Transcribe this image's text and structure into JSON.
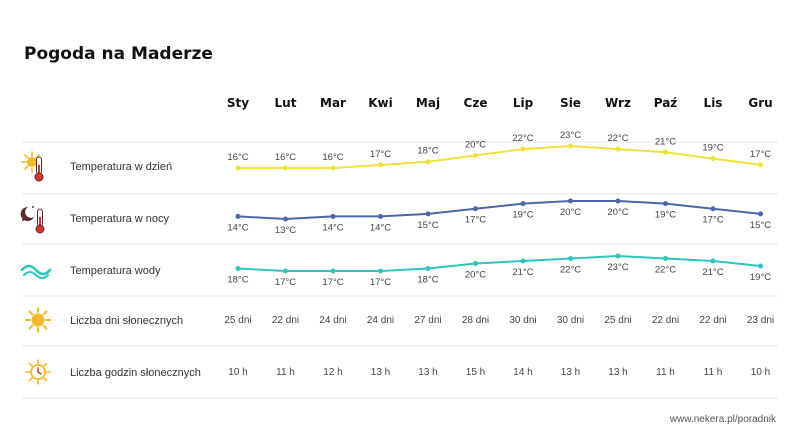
{
  "title": "Pogoda na Maderze",
  "source": "www.nekera.pl/poradnik",
  "colors": {
    "day": "#f0e23a",
    "night": "#4a67a8",
    "water": "#2ec5bd",
    "divider": "#e6e6e6",
    "sun": "#f5b92a",
    "thermo_red": "#d9322e"
  },
  "chart_data": {
    "type": "line",
    "categories": [
      "Sty",
      "Lut",
      "Mar",
      "Kwi",
      "Maj",
      "Cze",
      "Lip",
      "Sie",
      "Wrz",
      "Paź",
      "Lis",
      "Gru"
    ],
    "series": [
      {
        "name": "Temperatura w dzień",
        "icon": "sun-thermometer-icon",
        "values": [
          16,
          16,
          16,
          17,
          18,
          20,
          22,
          23,
          22,
          21,
          19,
          17
        ],
        "labels": [
          "16°C",
          "16°C",
          "16°C",
          "17°C",
          "18°C",
          "20°C",
          "22°C",
          "23°C",
          "22°C",
          "21°C",
          "19°C",
          "17°C"
        ]
      },
      {
        "name": "Temperatura w nocy",
        "icon": "moon-thermometer-icon",
        "values": [
          14,
          13,
          14,
          14,
          15,
          17,
          19,
          20,
          20,
          19,
          17,
          15
        ],
        "labels": [
          "14°C",
          "13°C",
          "14°C",
          "14°C",
          "15°C",
          "17°C",
          "19°C",
          "20°C",
          "20°C",
          "19°C",
          "17°C",
          "15°C"
        ]
      },
      {
        "name": "Temperatura wody",
        "icon": "wave-icon",
        "values": [
          18,
          17,
          17,
          17,
          18,
          20,
          21,
          22,
          23,
          22,
          21,
          19
        ],
        "labels": [
          "18°C",
          "17°C",
          "17°C",
          "17°C",
          "18°C",
          "20°C",
          "21°C",
          "22°C",
          "23°C",
          "22°C",
          "21°C",
          "19°C"
        ]
      }
    ],
    "rows": [
      {
        "name": "Liczba dni słonecznych",
        "icon": "sun-icon",
        "values": [
          "25 dni",
          "22 dni",
          "24 dni",
          "24 dni",
          "27 dni",
          "28 dni",
          "30 dni",
          "30 dni",
          "25 dni",
          "22 dni",
          "22 dni",
          "23 dni"
        ]
      },
      {
        "name": "Liczba godzin słonecznych",
        "icon": "sun-clock-icon",
        "values": [
          "10 h",
          "11 h",
          "12 h",
          "13 h",
          "13 h",
          "15 h",
          "14 h",
          "13 h",
          "13 h",
          "11 h",
          "11 h",
          "10 h"
        ]
      }
    ]
  }
}
